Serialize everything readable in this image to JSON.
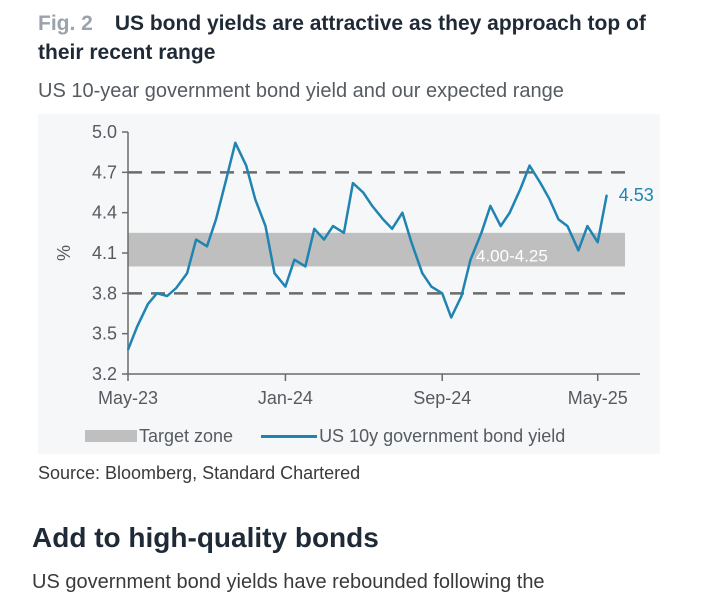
{
  "figure": {
    "number": "Fig. 2",
    "title": "US bond yields are attractive as they approach top of their recent range",
    "subtitle": "US 10-year government bond yield and our expected range",
    "source": "Source: Bloomberg, Standard Chartered"
  },
  "article": {
    "section_heading": "Add to high-quality bonds",
    "body_text": "US government bond yields have rebounded following the"
  },
  "colors": {
    "line": "#1f84b2",
    "target_zone": "#bfbfbf",
    "dashed_lines": "#6b6b6b",
    "axis": "#6b6b6b"
  },
  "chart_data": {
    "type": "line",
    "title": "US 10-year government bond yield and our expected range",
    "ylabel": "%",
    "xlabel": "",
    "ylim": [
      3.2,
      5.0
    ],
    "yticks": [
      "5.0",
      "4.7",
      "4.4",
      "4.1",
      "3.8",
      "3.5",
      "3.2"
    ],
    "x_ticks": [
      "May-23",
      "Jan-24",
      "Sep-24",
      "May-25"
    ],
    "grid": false,
    "legend_position": "bottom",
    "target_zone": {
      "name": "Target zone",
      "low": 4.0,
      "high": 4.25,
      "label": "4.00-4.25"
    },
    "reference_lines": [
      4.7,
      3.8
    ],
    "last_value_label": "4.53",
    "series": [
      {
        "name": "US 10y government bond yield",
        "x": [
          "2023-05-01",
          "2023-05-15",
          "2023-06-01",
          "2023-06-15",
          "2023-07-01",
          "2023-07-15",
          "2023-08-01",
          "2023-08-15",
          "2023-09-01",
          "2023-09-15",
          "2023-10-01",
          "2023-10-15",
          "2023-11-01",
          "2023-11-15",
          "2023-12-01",
          "2023-12-15",
          "2024-01-01",
          "2024-01-15",
          "2024-02-01",
          "2024-02-15",
          "2024-03-01",
          "2024-03-15",
          "2024-04-01",
          "2024-04-15",
          "2024-05-01",
          "2024-05-15",
          "2024-06-01",
          "2024-06-15",
          "2024-07-01",
          "2024-07-15",
          "2024-08-01",
          "2024-08-15",
          "2024-09-01",
          "2024-09-15",
          "2024-10-01",
          "2024-10-15",
          "2024-11-01",
          "2024-11-15",
          "2024-12-01",
          "2024-12-15",
          "2025-01-01",
          "2025-01-15",
          "2025-02-01",
          "2025-02-15",
          "2025-03-01",
          "2025-03-15",
          "2025-04-01",
          "2025-04-15",
          "2025-05-01",
          "2025-05-15"
        ],
        "values": [
          3.38,
          3.55,
          3.72,
          3.8,
          3.78,
          3.84,
          3.95,
          4.2,
          4.15,
          4.35,
          4.65,
          4.92,
          4.75,
          4.5,
          4.3,
          3.95,
          3.85,
          4.05,
          4.0,
          4.28,
          4.2,
          4.3,
          4.25,
          4.62,
          4.55,
          4.45,
          4.35,
          4.28,
          4.4,
          4.18,
          3.95,
          3.85,
          3.8,
          3.62,
          3.78,
          4.05,
          4.25,
          4.45,
          4.3,
          4.4,
          4.58,
          4.75,
          4.62,
          4.5,
          4.35,
          4.3,
          4.12,
          4.3,
          4.18,
          4.53
        ]
      }
    ]
  }
}
